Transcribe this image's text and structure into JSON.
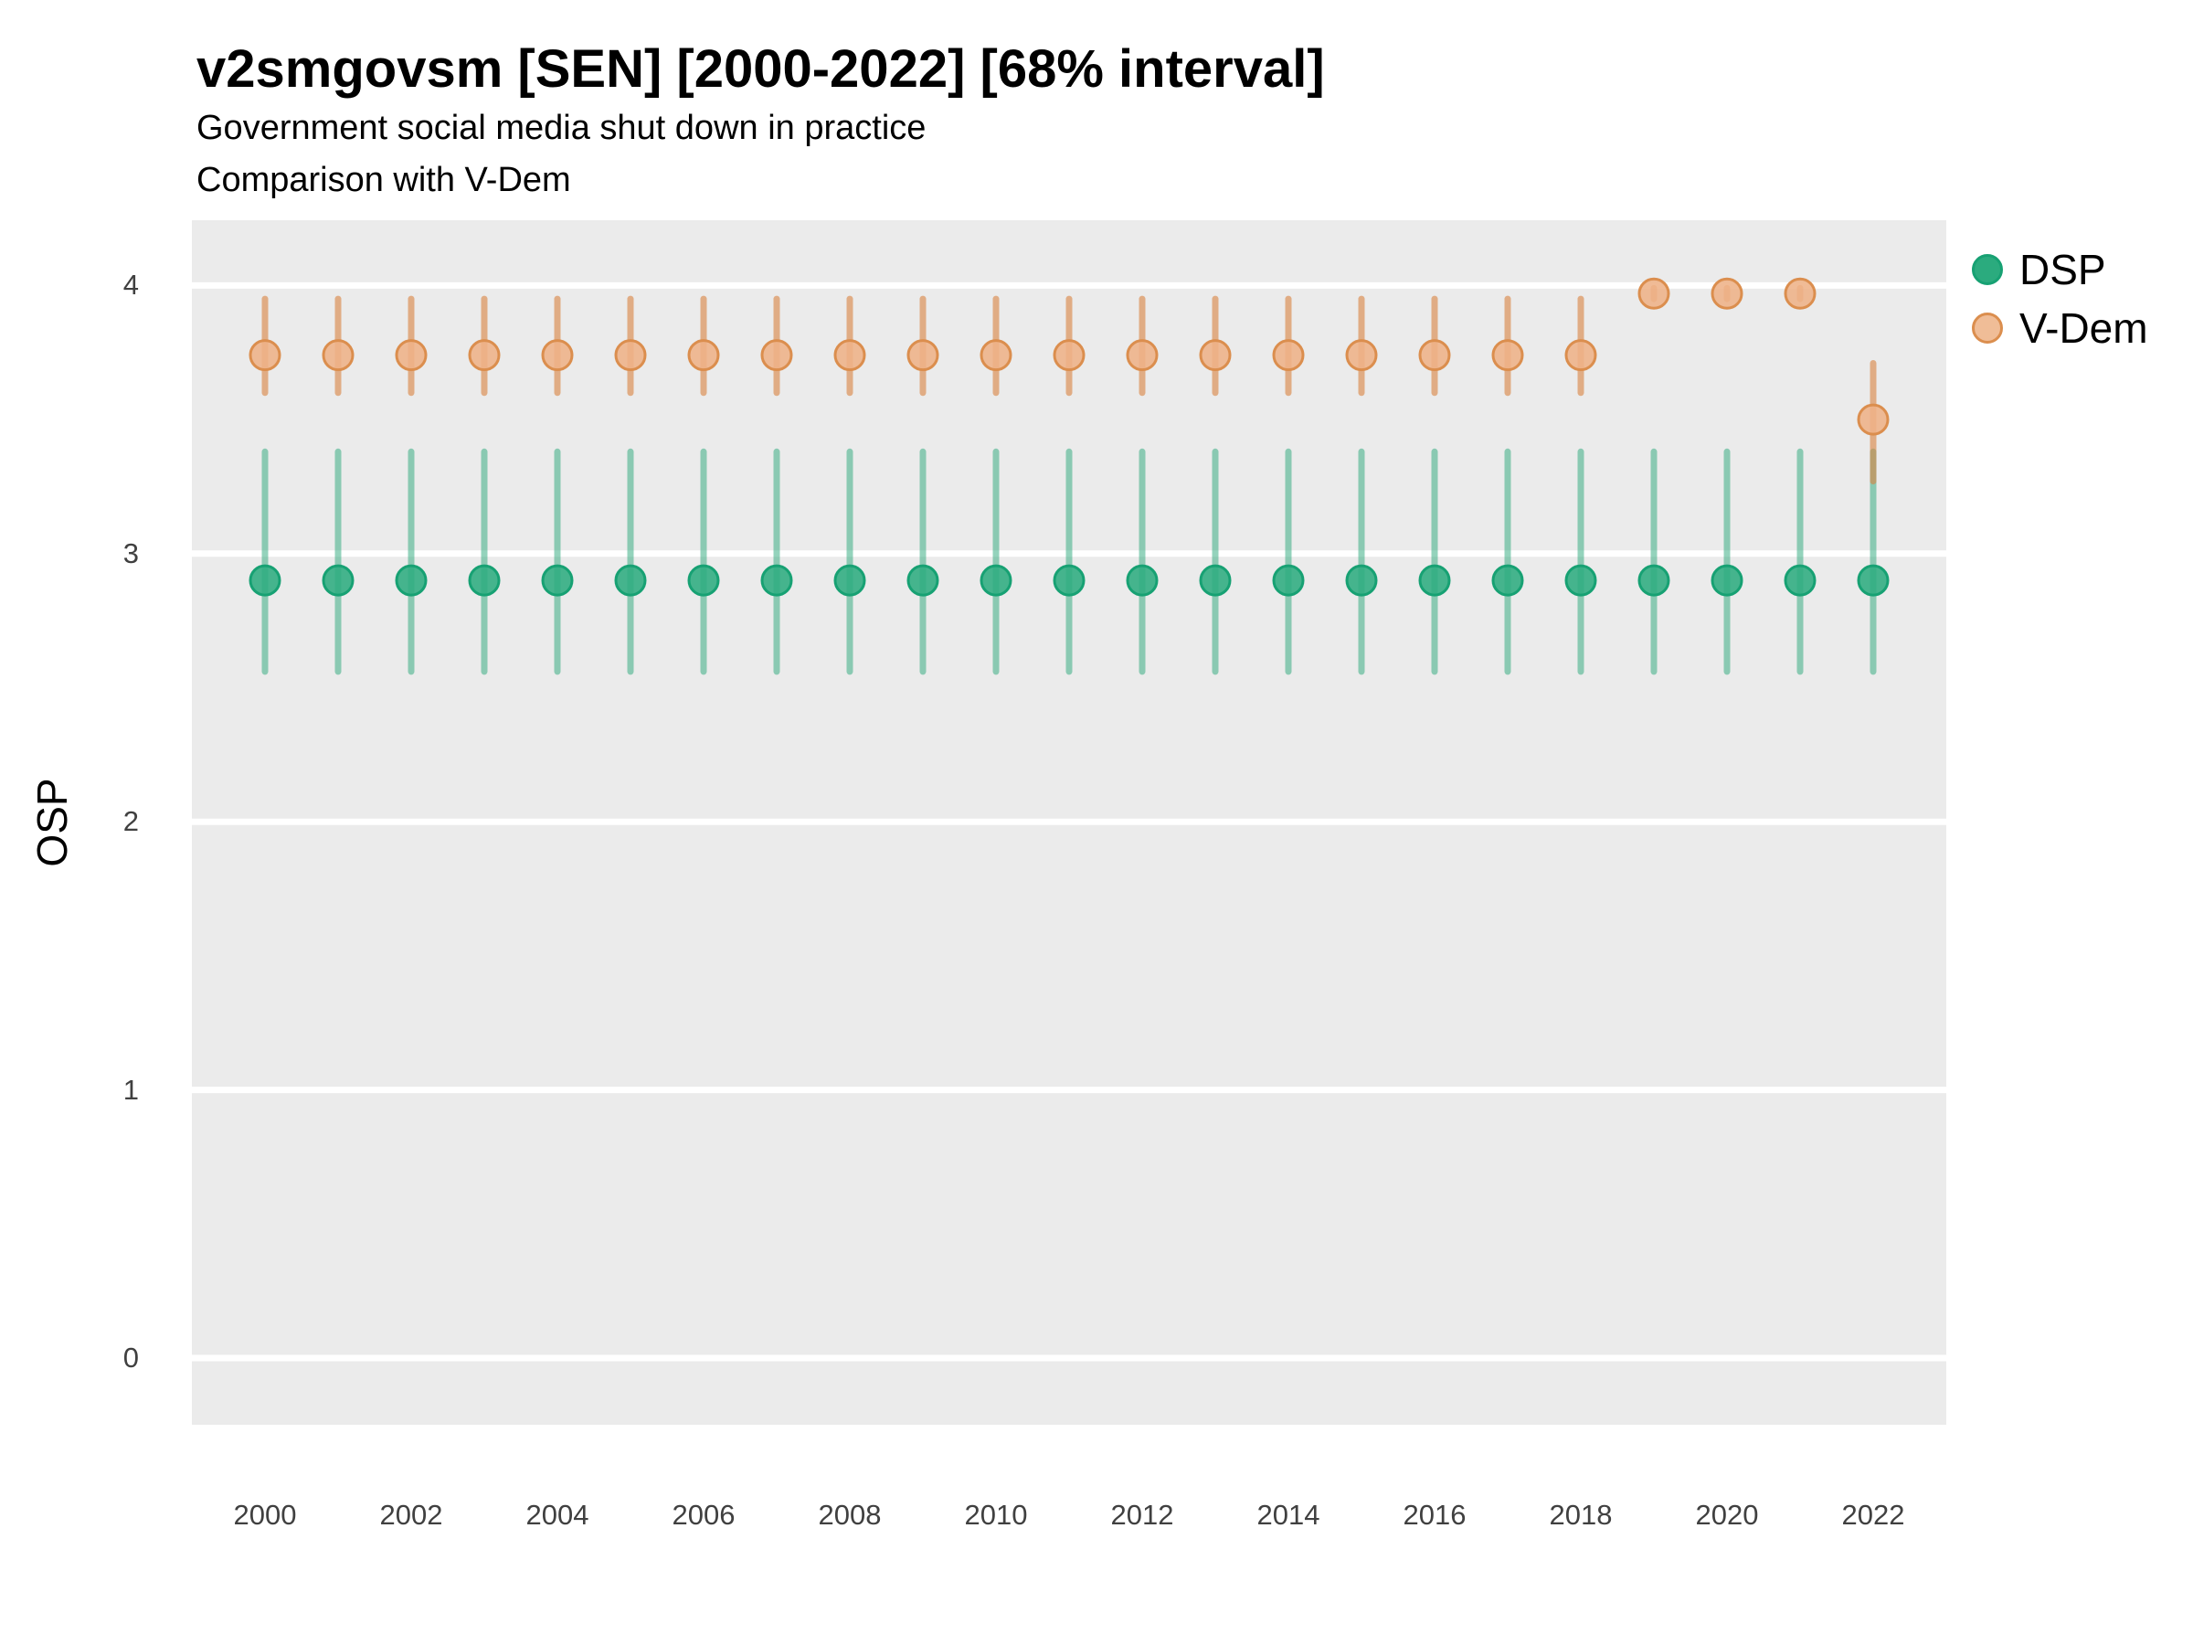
{
  "chart_data": {
    "type": "pointrange",
    "title": "v2smgovsm [SEN] [2000-2022] [68% interval]",
    "subtitle": [
      "Government social media shut down in practice",
      "Comparison with V-Dem"
    ],
    "ylabel": "OSP",
    "x_axis": {
      "tick_years": [
        2000,
        2002,
        2004,
        2006,
        2008,
        2010,
        2012,
        2014,
        2016,
        2018,
        2020,
        2022
      ],
      "tick_labels": [
        "2000",
        "2002",
        "2004",
        "2006",
        "2008",
        "2010",
        "2012",
        "2014",
        "2016",
        "2018",
        "2020",
        "2022"
      ],
      "range": [
        1999,
        2023
      ]
    },
    "y_axis": {
      "ticks": [
        0,
        1,
        2,
        3,
        4
      ],
      "tick_labels": [
        "0",
        "1",
        "2",
        "3",
        "4"
      ],
      "range": [
        -0.25,
        4.24
      ]
    },
    "panel": {
      "background": "#EBEBEB",
      "gridline_color": "#FFFFFF"
    },
    "legend": {
      "position": "right",
      "entries": [
        "DSP",
        "V-Dem"
      ]
    },
    "series": [
      {
        "name": "DSP",
        "point_fill": "#2EAC80",
        "point_stroke": "#17A173",
        "legend_fill": "#2BAB7E",
        "line_color": "#2AA87A",
        "line_opacity": 0.5,
        "points": [
          {
            "x": 2000,
            "est": 2.9,
            "lo": 2.56,
            "hi": 3.38
          },
          {
            "x": 2001,
            "est": 2.9,
            "lo": 2.56,
            "hi": 3.38
          },
          {
            "x": 2002,
            "est": 2.9,
            "lo": 2.56,
            "hi": 3.38
          },
          {
            "x": 2003,
            "est": 2.9,
            "lo": 2.56,
            "hi": 3.38
          },
          {
            "x": 2004,
            "est": 2.9,
            "lo": 2.56,
            "hi": 3.38
          },
          {
            "x": 2005,
            "est": 2.9,
            "lo": 2.56,
            "hi": 3.38
          },
          {
            "x": 2006,
            "est": 2.9,
            "lo": 2.56,
            "hi": 3.38
          },
          {
            "x": 2007,
            "est": 2.9,
            "lo": 2.56,
            "hi": 3.38
          },
          {
            "x": 2008,
            "est": 2.9,
            "lo": 2.56,
            "hi": 3.38
          },
          {
            "x": 2009,
            "est": 2.9,
            "lo": 2.56,
            "hi": 3.38
          },
          {
            "x": 2010,
            "est": 2.9,
            "lo": 2.56,
            "hi": 3.38
          },
          {
            "x": 2011,
            "est": 2.9,
            "lo": 2.56,
            "hi": 3.38
          },
          {
            "x": 2012,
            "est": 2.9,
            "lo": 2.56,
            "hi": 3.38
          },
          {
            "x": 2013,
            "est": 2.9,
            "lo": 2.56,
            "hi": 3.38
          },
          {
            "x": 2014,
            "est": 2.9,
            "lo": 2.56,
            "hi": 3.38
          },
          {
            "x": 2015,
            "est": 2.9,
            "lo": 2.56,
            "hi": 3.38
          },
          {
            "x": 2016,
            "est": 2.9,
            "lo": 2.56,
            "hi": 3.38
          },
          {
            "x": 2017,
            "est": 2.9,
            "lo": 2.56,
            "hi": 3.38
          },
          {
            "x": 2018,
            "est": 2.9,
            "lo": 2.56,
            "hi": 3.38
          },
          {
            "x": 2019,
            "est": 2.9,
            "lo": 2.56,
            "hi": 3.38
          },
          {
            "x": 2020,
            "est": 2.9,
            "lo": 2.56,
            "hi": 3.38
          },
          {
            "x": 2021,
            "est": 2.9,
            "lo": 2.56,
            "hi": 3.38
          },
          {
            "x": 2022,
            "est": 2.9,
            "lo": 2.56,
            "hi": 3.38
          }
        ]
      },
      {
        "name": "V-Dem",
        "point_fill": "#EEB287",
        "point_stroke": "#DB8E4E",
        "legend_fill": "#F0BD97",
        "line_color": "#D9823F",
        "line_opacity": 0.6,
        "points": [
          {
            "x": 2000,
            "est": 3.74,
            "lo": 3.6,
            "hi": 3.95
          },
          {
            "x": 2001,
            "est": 3.74,
            "lo": 3.6,
            "hi": 3.95
          },
          {
            "x": 2002,
            "est": 3.74,
            "lo": 3.6,
            "hi": 3.95
          },
          {
            "x": 2003,
            "est": 3.74,
            "lo": 3.6,
            "hi": 3.95
          },
          {
            "x": 2004,
            "est": 3.74,
            "lo": 3.6,
            "hi": 3.95
          },
          {
            "x": 2005,
            "est": 3.74,
            "lo": 3.6,
            "hi": 3.95
          },
          {
            "x": 2006,
            "est": 3.74,
            "lo": 3.6,
            "hi": 3.95
          },
          {
            "x": 2007,
            "est": 3.74,
            "lo": 3.6,
            "hi": 3.95
          },
          {
            "x": 2008,
            "est": 3.74,
            "lo": 3.6,
            "hi": 3.95
          },
          {
            "x": 2009,
            "est": 3.74,
            "lo": 3.6,
            "hi": 3.95
          },
          {
            "x": 2010,
            "est": 3.74,
            "lo": 3.6,
            "hi": 3.95
          },
          {
            "x": 2011,
            "est": 3.74,
            "lo": 3.6,
            "hi": 3.95
          },
          {
            "x": 2012,
            "est": 3.74,
            "lo": 3.6,
            "hi": 3.95
          },
          {
            "x": 2013,
            "est": 3.74,
            "lo": 3.6,
            "hi": 3.95
          },
          {
            "x": 2014,
            "est": 3.74,
            "lo": 3.6,
            "hi": 3.95
          },
          {
            "x": 2015,
            "est": 3.74,
            "lo": 3.6,
            "hi": 3.95
          },
          {
            "x": 2016,
            "est": 3.74,
            "lo": 3.6,
            "hi": 3.95
          },
          {
            "x": 2017,
            "est": 3.74,
            "lo": 3.6,
            "hi": 3.95
          },
          {
            "x": 2018,
            "est": 3.74,
            "lo": 3.6,
            "hi": 3.95
          },
          {
            "x": 2019,
            "est": 3.97,
            "lo": 3.95,
            "hi": 3.99
          },
          {
            "x": 2020,
            "est": 3.97,
            "lo": 3.95,
            "hi": 3.99
          },
          {
            "x": 2021,
            "est": 3.97,
            "lo": 3.95,
            "hi": 3.99
          },
          {
            "x": 2022,
            "est": 3.5,
            "lo": 3.27,
            "hi": 3.71
          }
        ]
      }
    ]
  }
}
